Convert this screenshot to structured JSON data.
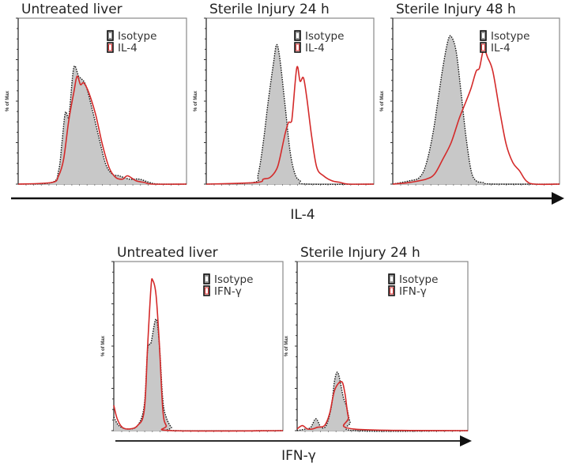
{
  "chart_data": [
    {
      "type": "histogram-overlay",
      "title": "Untreated liver",
      "group": "IL-4",
      "ylabel": "% of Max",
      "ylim": [
        0,
        100
      ],
      "xlim": [
        0,
        1
      ],
      "legend": [
        "Isotype",
        "IL-4"
      ],
      "legend_placement": "top-right",
      "series": [
        {
          "name": "Isotype",
          "style": "dotted-black-filled-gray",
          "x": [
            0,
            0.2,
            0.24,
            0.26,
            0.28,
            0.3,
            0.33,
            0.36,
            0.4,
            0.44,
            0.48,
            0.52,
            0.56,
            0.6,
            0.66,
            0.72,
            0.78,
            0.84,
            1
          ],
          "y": [
            0,
            1,
            8,
            25,
            43,
            40,
            70,
            65,
            60,
            45,
            28,
            12,
            6,
            5,
            3,
            3,
            1,
            0,
            0
          ]
        },
        {
          "name": "IL-4",
          "style": "solid-red",
          "x": [
            0,
            0.2,
            0.24,
            0.27,
            0.3,
            0.33,
            0.35,
            0.37,
            0.39,
            0.42,
            0.46,
            0.5,
            0.54,
            0.58,
            0.62,
            0.65,
            0.7,
            0.75,
            0.8,
            1
          ],
          "y": [
            0,
            1,
            5,
            15,
            38,
            55,
            65,
            60,
            61,
            55,
            42,
            24,
            10,
            4,
            3,
            5,
            2,
            1,
            0,
            0
          ]
        }
      ]
    },
    {
      "type": "histogram-overlay",
      "title": "Sterile Injury 24 h",
      "group": "IL-4",
      "ylabel": "% of Max",
      "ylim": [
        0,
        100
      ],
      "xlim": [
        0,
        1
      ],
      "legend": [
        "Isotype",
        "IL-4"
      ],
      "legend_placement": "top-right",
      "series": [
        {
          "name": "Isotype",
          "style": "dotted-black-filled-gray",
          "x": [
            0,
            0.28,
            0.31,
            0.34,
            0.37,
            0.4,
            0.42,
            0.44,
            0.47,
            0.5,
            0.53,
            0.56,
            0.6,
            1
          ],
          "y": [
            0,
            1,
            6,
            25,
            50,
            72,
            84,
            75,
            48,
            20,
            6,
            2,
            0,
            0
          ]
        },
        {
          "name": "IL-4",
          "style": "solid-red",
          "x": [
            0,
            0.3,
            0.34,
            0.38,
            0.42,
            0.44,
            0.47,
            0.49,
            0.51,
            0.54,
            0.56,
            0.58,
            0.6,
            0.63,
            0.66,
            0.7,
            0.75,
            0.8,
            0.85,
            1
          ],
          "y": [
            0,
            1,
            3,
            4,
            9,
            16,
            30,
            37,
            38,
            70,
            62,
            64,
            52,
            28,
            10,
            5,
            2,
            1,
            0,
            0
          ]
        }
      ]
    },
    {
      "type": "histogram-overlay",
      "title": "Sterile Injury 48 h",
      "group": "IL-4",
      "ylabel": "% of Max",
      "ylim": [
        0,
        100
      ],
      "xlim": [
        0,
        1
      ],
      "legend": [
        "Isotype",
        "IL-4"
      ],
      "legend_placement": "top-right",
      "series": [
        {
          "name": "Isotype",
          "style": "dotted-black-filled-gray",
          "x": [
            0,
            0.1,
            0.16,
            0.2,
            0.24,
            0.27,
            0.3,
            0.33,
            0.35,
            0.38,
            0.41,
            0.44,
            0.47,
            0.5,
            0.54,
            0.6,
            1
          ],
          "y": [
            0,
            2,
            4,
            12,
            30,
            50,
            70,
            86,
            89,
            80,
            55,
            28,
            8,
            2,
            1,
            0,
            0
          ]
        },
        {
          "name": "IL-4",
          "style": "solid-red",
          "x": [
            0,
            0.1,
            0.2,
            0.25,
            0.3,
            0.35,
            0.4,
            0.44,
            0.47,
            0.5,
            0.52,
            0.545,
            0.57,
            0.6,
            0.64,
            0.68,
            0.72,
            0.76,
            0.8,
            0.85,
            1
          ],
          "y": [
            0,
            1,
            3,
            6,
            15,
            25,
            40,
            50,
            58,
            68,
            70,
            81,
            76,
            68,
            45,
            24,
            13,
            8,
            2,
            0,
            0
          ]
        }
      ]
    },
    {
      "type": "histogram-overlay",
      "title": "Untreated liver",
      "group": "IFN-γ",
      "ylabel": "% of Max",
      "ylim": [
        0,
        100
      ],
      "xlim": [
        0,
        1
      ],
      "legend": [
        "Isotype",
        "IFN-γ"
      ],
      "legend_placement": "top-right",
      "series": [
        {
          "name": "Isotype",
          "style": "dotted-black-filled-gray",
          "x": [
            0,
            0.03,
            0.08,
            0.14,
            0.18,
            0.2,
            0.22,
            0.25,
            0.27,
            0.29,
            0.31,
            0.34,
            0.37,
            1
          ],
          "y": [
            8,
            3,
            1,
            3,
            15,
            48,
            52,
            66,
            50,
            18,
            8,
            2,
            0,
            0
          ]
        },
        {
          "name": "IFN-γ",
          "style": "solid-red",
          "x": [
            0,
            0.02,
            0.05,
            0.09,
            0.14,
            0.18,
            0.2,
            0.22,
            0.23,
            0.25,
            0.27,
            0.29,
            0.31,
            0.34,
            1
          ],
          "y": [
            15,
            7,
            2,
            1,
            3,
            12,
            50,
            85,
            89,
            80,
            50,
            12,
            3,
            0,
            0
          ]
        }
      ]
    },
    {
      "type": "histogram-overlay",
      "title": "Sterile Injury 24 h",
      "group": "IFN-γ",
      "ylabel": "% of Max",
      "ylim": [
        0,
        100
      ],
      "xlim": [
        0,
        1
      ],
      "legend": [
        "Isotype",
        "IFN-γ"
      ],
      "legend_placement": "top-right",
      "series": [
        {
          "name": "Isotype",
          "style": "dotted-black-filled-gray",
          "x": [
            0,
            0.05,
            0.08,
            0.11,
            0.14,
            0.17,
            0.2,
            0.22,
            0.24,
            0.27,
            0.29,
            0.31,
            0.34,
            1
          ],
          "y": [
            0,
            1,
            2,
            7,
            2,
            3,
            14,
            30,
            34,
            20,
            14,
            5,
            0,
            0
          ]
        },
        {
          "name": "IFN-γ",
          "style": "solid-red",
          "x": [
            0,
            0.03,
            0.06,
            0.09,
            0.12,
            0.16,
            0.19,
            0.22,
            0.26,
            0.28,
            0.3,
            0.33,
            1
          ],
          "y": [
            1,
            3,
            1,
            1,
            2,
            3,
            10,
            24,
            29,
            22,
            8,
            1,
            0
          ]
        }
      ]
    }
  ],
  "axes": {
    "top_xlabel": "IL-4",
    "bottom_xlabel": "IFN-γ"
  },
  "colors": {
    "isotype_fill": "#c8c8c8",
    "isotype_line": "#111111",
    "stain_line": "#d42a2a",
    "frame": "#888888"
  }
}
